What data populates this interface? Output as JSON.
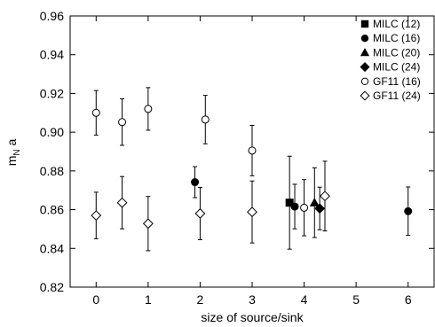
{
  "chart_data": {
    "type": "scatter",
    "title": "",
    "xlabel": "size of source/sink",
    "ylabel": {
      "main": "m",
      "sub": "N",
      "suffix": " a"
    },
    "xlim": [
      -0.5,
      6.5
    ],
    "ylim": [
      0.82,
      0.96
    ],
    "xticks": [
      0,
      1,
      2,
      3,
      4,
      5,
      6
    ],
    "yticks": [
      0.82,
      0.84,
      0.86,
      0.88,
      0.9,
      0.92,
      0.94,
      0.96
    ],
    "yticklabels": [
      "0.82",
      "0.84",
      "0.86",
      "0.88",
      "0.90",
      "0.92",
      "0.94",
      "0.96"
    ],
    "grid": false,
    "legend_position": "top-right",
    "series": [
      {
        "name": "MILC (12)",
        "marker": "square",
        "filled": true,
        "points": [
          {
            "x": 3.72,
            "y": 0.8636,
            "err": 0.024
          }
        ]
      },
      {
        "name": "MILC (16)",
        "marker": "circle",
        "filled": true,
        "points": [
          {
            "x": 1.9,
            "y": 0.8742,
            "err": 0.008
          },
          {
            "x": 3.82,
            "y": 0.8616,
            "err": 0.0115
          },
          {
            "x": 6.0,
            "y": 0.8592,
            "err": 0.0125
          }
        ]
      },
      {
        "name": "MILC (20)",
        "marker": "triangle",
        "filled": true,
        "points": [
          {
            "x": 4.2,
            "y": 0.8636,
            "err": 0.018
          }
        ]
      },
      {
        "name": "MILC (24)",
        "marker": "diamond",
        "filled": true,
        "points": [
          {
            "x": 4.3,
            "y": 0.8606,
            "err": 0.011
          }
        ]
      },
      {
        "name": "GF11 (16)",
        "marker": "circle",
        "filled": false,
        "points": [
          {
            "x": 0.0,
            "y": 0.91,
            "err": 0.0115
          },
          {
            "x": 0.5,
            "y": 0.9052,
            "err": 0.012
          },
          {
            "x": 1.0,
            "y": 0.912,
            "err": 0.011
          },
          {
            "x": 2.1,
            "y": 0.9065,
            "err": 0.0125
          },
          {
            "x": 3.0,
            "y": 0.8905,
            "err": 0.013
          },
          {
            "x": 4.0,
            "y": 0.861,
            "err": 0.0145
          }
        ]
      },
      {
        "name": "GF11 (24)",
        "marker": "diamond",
        "filled": false,
        "points": [
          {
            "x": 0.0,
            "y": 0.857,
            "err": 0.012
          },
          {
            "x": 0.5,
            "y": 0.8636,
            "err": 0.0135
          },
          {
            "x": 1.0,
            "y": 0.8528,
            "err": 0.014
          },
          {
            "x": 2.0,
            "y": 0.858,
            "err": 0.0135
          },
          {
            "x": 3.0,
            "y": 0.8588,
            "err": 0.016
          },
          {
            "x": 4.4,
            "y": 0.867,
            "err": 0.018
          }
        ]
      }
    ]
  }
}
